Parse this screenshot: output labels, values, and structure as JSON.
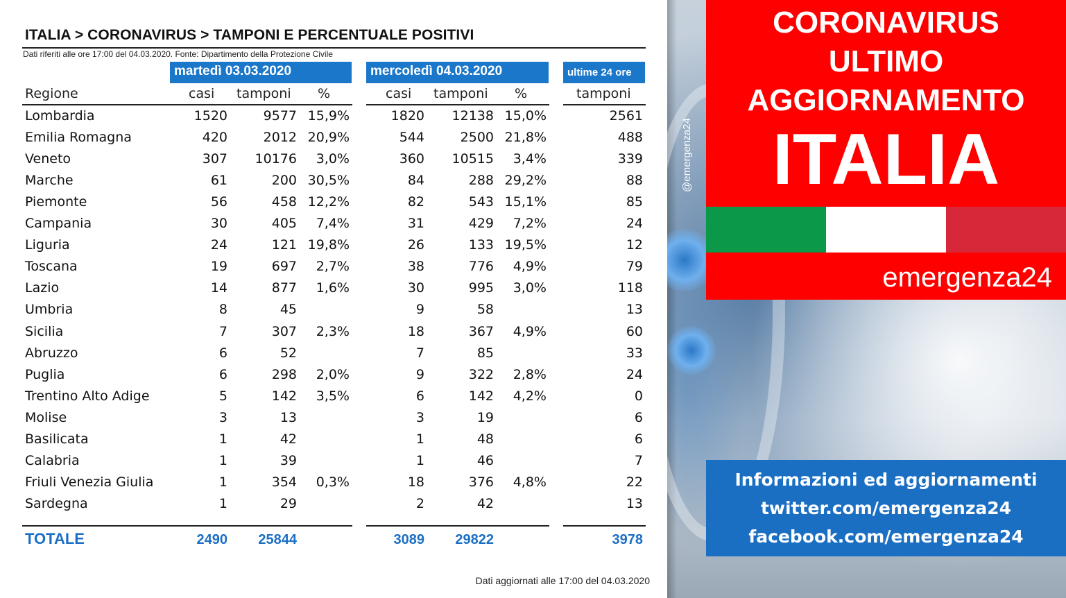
{
  "table": {
    "title": "ITALIA > CORONAVIRUS > TAMPONI E PERCENTUALE POSITIVI",
    "source": "Dati riferiti alle ore 17:00 del 04.03.2020. Fonte: Dipartimento della Protezione Civile",
    "day1": "martedì 03.03.2020",
    "day2": "mercoledì 04.03.2020",
    "day3": "ultime 24 ore",
    "headers": {
      "regione": "Regione",
      "casi": "casi",
      "tamponi": "tamponi",
      "perc": "%"
    },
    "rows": [
      {
        "regione": "Lombardia",
        "casi1": "1520",
        "tamp1": "9577",
        "perc1": "15,9%",
        "casi2": "1820",
        "tamp2": "12138",
        "perc2": "15,0%",
        "t24": "2561"
      },
      {
        "regione": "Emilia Romagna",
        "casi1": "420",
        "tamp1": "2012",
        "perc1": "20,9%",
        "casi2": "544",
        "tamp2": "2500",
        "perc2": "21,8%",
        "t24": "488"
      },
      {
        "regione": "Veneto",
        "casi1": "307",
        "tamp1": "10176",
        "perc1": "3,0%",
        "casi2": "360",
        "tamp2": "10515",
        "perc2": "3,4%",
        "t24": "339"
      },
      {
        "regione": "Marche",
        "casi1": "61",
        "tamp1": "200",
        "perc1": "30,5%",
        "casi2": "84",
        "tamp2": "288",
        "perc2": "29,2%",
        "t24": "88"
      },
      {
        "regione": "Piemonte",
        "casi1": "56",
        "tamp1": "458",
        "perc1": "12,2%",
        "casi2": "82",
        "tamp2": "543",
        "perc2": "15,1%",
        "t24": "85"
      },
      {
        "regione": "Campania",
        "casi1": "30",
        "tamp1": "405",
        "perc1": "7,4%",
        "casi2": "31",
        "tamp2": "429",
        "perc2": "7,2%",
        "t24": "24"
      },
      {
        "regione": "Liguria",
        "casi1": "24",
        "tamp1": "121",
        "perc1": "19,8%",
        "casi2": "26",
        "tamp2": "133",
        "perc2": "19,5%",
        "t24": "12"
      },
      {
        "regione": "Toscana",
        "casi1": "19",
        "tamp1": "697",
        "perc1": "2,7%",
        "casi2": "38",
        "tamp2": "776",
        "perc2": "4,9%",
        "t24": "79"
      },
      {
        "regione": "Lazio",
        "casi1": "14",
        "tamp1": "877",
        "perc1": "1,6%",
        "casi2": "30",
        "tamp2": "995",
        "perc2": "3,0%",
        "t24": "118"
      },
      {
        "regione": "Umbria",
        "casi1": "8",
        "tamp1": "45",
        "perc1": "",
        "casi2": "9",
        "tamp2": "58",
        "perc2": "",
        "t24": "13"
      },
      {
        "regione": "Sicilia",
        "casi1": "7",
        "tamp1": "307",
        "perc1": "2,3%",
        "casi2": "18",
        "tamp2": "367",
        "perc2": "4,9%",
        "t24": "60"
      },
      {
        "regione": "Abruzzo",
        "casi1": "6",
        "tamp1": "52",
        "perc1": "",
        "casi2": "7",
        "tamp2": "85",
        "perc2": "",
        "t24": "33"
      },
      {
        "regione": "Puglia",
        "casi1": "6",
        "tamp1": "298",
        "perc1": "2,0%",
        "casi2": "9",
        "tamp2": "322",
        "perc2": "2,8%",
        "t24": "24"
      },
      {
        "regione": "Trentino Alto Adige",
        "casi1": "5",
        "tamp1": "142",
        "perc1": "3,5%",
        "casi2": "6",
        "tamp2": "142",
        "perc2": "4,2%",
        "t24": "0"
      },
      {
        "regione": "Molise",
        "casi1": "3",
        "tamp1": "13",
        "perc1": "",
        "casi2": "3",
        "tamp2": "19",
        "perc2": "",
        "t24": "6"
      },
      {
        "regione": "Basilicata",
        "casi1": "1",
        "tamp1": "42",
        "perc1": "",
        "casi2": "1",
        "tamp2": "48",
        "perc2": "",
        "t24": "6"
      },
      {
        "regione": "Calabria",
        "casi1": "1",
        "tamp1": "39",
        "perc1": "",
        "casi2": "1",
        "tamp2": "46",
        "perc2": "",
        "t24": "7"
      },
      {
        "regione": "Friuli Venezia Giulia",
        "casi1": "1",
        "tamp1": "354",
        "perc1": "0,3%",
        "casi2": "18",
        "tamp2": "376",
        "perc2": "4,8%",
        "t24": "22"
      },
      {
        "regione": "Sardegna",
        "casi1": "1",
        "tamp1": "29",
        "perc1": "",
        "casi2": "2",
        "tamp2": "42",
        "perc2": "",
        "t24": "13"
      }
    ],
    "total": {
      "label": "TOTALE",
      "casi1": "2490",
      "tamp1": "25844",
      "casi2": "3089",
      "tamp2": "29822",
      "t24": "3978"
    },
    "footer": "Dati aggiornati alle 17:00 del 04.03.2020"
  },
  "banner": {
    "line1": "CORONAVIRUS",
    "line2": "ULTIMO",
    "line3": "AGGIORNAMENTO",
    "country": "ITALIA",
    "brand": "emergenza24",
    "handle": "@emergenza24",
    "info1": "Informazioni ed aggiornamenti",
    "info2": "twitter.com/emergenza24",
    "info3": "facebook.com/emergenza24"
  },
  "colors": {
    "blue": "#1b77c9",
    "red": "#ff0000",
    "flag_green": "#0b9848",
    "flag_white": "#ffffff",
    "flag_red": "#d7283a"
  }
}
